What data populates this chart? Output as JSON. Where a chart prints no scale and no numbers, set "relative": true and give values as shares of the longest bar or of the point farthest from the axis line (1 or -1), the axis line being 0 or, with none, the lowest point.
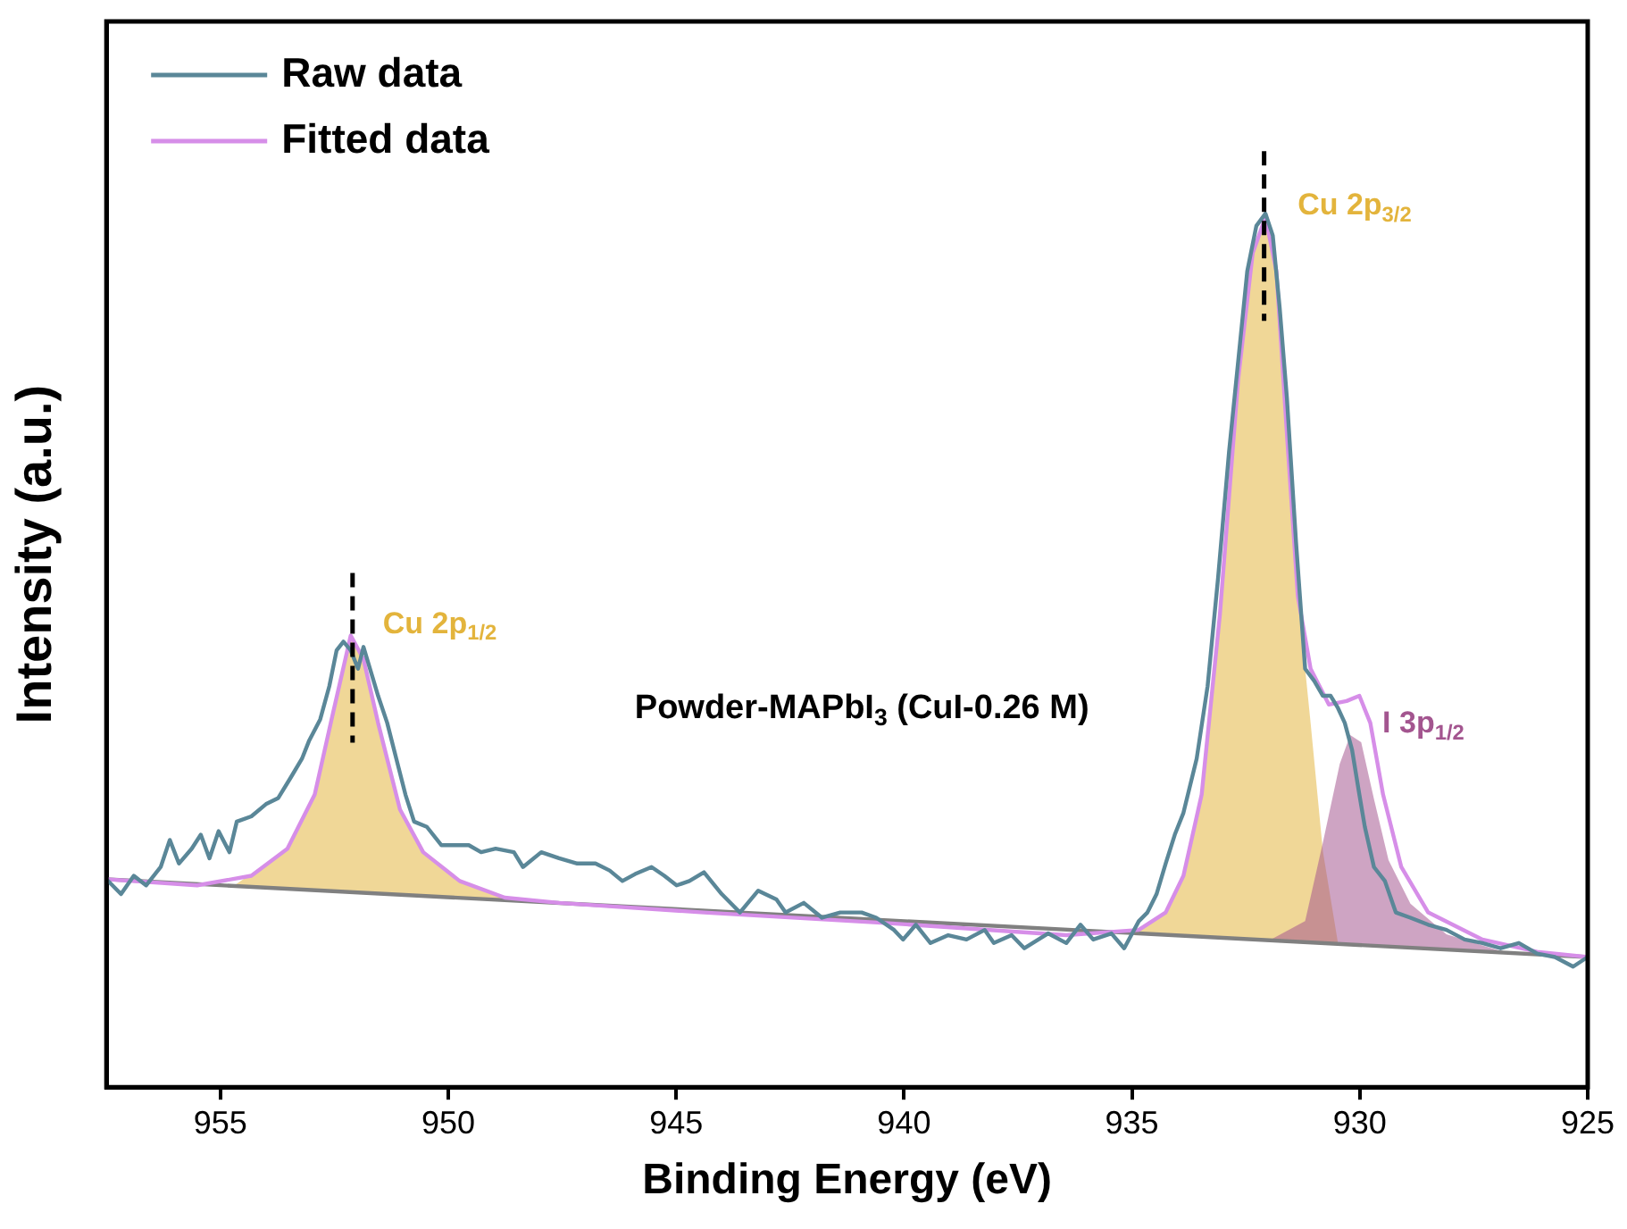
{
  "chart_data": {
    "type": "line",
    "relative": true,
    "xlabel": "Binding Energy (eV)",
    "ylabel": "Intensity (a.u.)",
    "xlim": [
      957.5,
      925
    ],
    "xticks": [
      955,
      950,
      945,
      940,
      935,
      930,
      925
    ],
    "tick_labels": "x",
    "grid": false,
    "legend": "top left",
    "marker": "none",
    "line_style": "solid",
    "annotations": [
      "Powder-MAPbI$_{3}$ (CuI-0.26 M)"
    ],
    "ref_lines": [
      {
        "axis": "x",
        "value": 952.1,
        "color": "#000000",
        "line_style": "dashed"
      },
      {
        "axis": "x",
        "value": 932.1,
        "color": "#000000",
        "line_style": "dashed"
      }
    ],
    "series": [
      {
        "type": "area",
        "name": "Cu 2p$_{1/2}$",
        "color": "#e3b43c",
        "x": [
          954.72,
          953.53,
          952.93,
          952.53,
          952.14,
          951.86,
          951.54,
          951.06,
          950.55,
          949.75,
          948.76,
          947.17
        ],
        "values": [
          0.23,
          0.273,
          0.335,
          0.428,
          0.517,
          0.49,
          0.417,
          0.318,
          0.269,
          0.236,
          0.217,
          0.21
        ]
      },
      {
        "type": "area",
        "name": "Cu 2p$_{3/2}$",
        "color": "#e3b43c",
        "x": [
          935.2,
          934.85,
          934.26,
          933.87,
          933.47,
          933.07,
          932.67,
          932.35,
          932.07,
          931.83,
          931.6,
          931.36,
          931.08,
          930.81,
          930.48
        ],
        "values": [
          0.177,
          0.18,
          0.2,
          0.242,
          0.335,
          0.541,
          0.81,
          0.955,
          0.996,
          0.934,
          0.748,
          0.562,
          0.417,
          0.27,
          0.165
        ]
      },
      {
        "type": "area",
        "name": "I 3p$_{1/2}$",
        "color": "#a3558f",
        "x": [
          931.99,
          931.2,
          930.81,
          930.44,
          930.21,
          929.97,
          929.69,
          929.37,
          928.89,
          928.1,
          926.91,
          926.11
        ],
        "values": [
          0.168,
          0.19,
          0.28,
          0.37,
          0.403,
          0.395,
          0.33,
          0.26,
          0.21,
          0.175,
          0.156,
          0.152
        ]
      },
      {
        "type": "line",
        "color": "#808080",
        "x": [
          957.5,
          925
        ],
        "values": [
          0.238,
          0.149
        ]
      },
      {
        "type": "line",
        "name": "Raw data",
        "color": "#5a8798",
        "x": [
          957.5,
          957.18,
          956.9,
          956.63,
          956.31,
          956.11,
          955.91,
          955.63,
          955.43,
          955.24,
          955.04,
          954.8,
          954.64,
          954.32,
          954.0,
          953.73,
          953.45,
          953.21,
          953.05,
          952.81,
          952.61,
          952.45,
          952.3,
          952.14,
          951.98,
          951.86,
          951.74,
          951.54,
          951.34,
          951.14,
          950.94,
          950.75,
          950.47,
          950.15,
          949.87,
          949.55,
          949.28,
          948.96,
          948.56,
          948.36,
          947.96,
          947.57,
          947.17,
          946.77,
          946.46,
          946.18,
          945.9,
          945.54,
          945.26,
          944.99,
          944.71,
          944.39,
          944.0,
          943.6,
          943.2,
          942.8,
          942.6,
          942.2,
          941.8,
          941.4,
          940.93,
          940.61,
          940.22,
          940.02,
          939.74,
          939.42,
          939.03,
          938.63,
          938.23,
          938.03,
          937.64,
          937.36,
          936.84,
          936.44,
          936.13,
          935.85,
          935.45,
          935.17,
          934.85,
          934.66,
          934.46,
          934.26,
          934.06,
          933.87,
          933.58,
          933.34,
          933.11,
          932.87,
          932.63,
          932.47,
          932.27,
          932.07,
          931.91,
          931.76,
          931.6,
          931.4,
          931.2,
          931.0,
          930.81,
          930.64,
          930.48,
          930.33,
          930.17,
          930.01,
          929.89,
          929.69,
          929.45,
          929.21,
          928.89,
          928.5,
          928.1,
          927.7,
          927.31,
          926.91,
          926.51,
          926.11,
          925.72,
          925.32,
          925.0
        ],
        "values": [
          0.238,
          0.221,
          0.242,
          0.231,
          0.252,
          0.283,
          0.256,
          0.273,
          0.289,
          0.262,
          0.293,
          0.269,
          0.304,
          0.31,
          0.324,
          0.331,
          0.355,
          0.376,
          0.397,
          0.421,
          0.459,
          0.5,
          0.51,
          0.5,
          0.479,
          0.504,
          0.483,
          0.448,
          0.417,
          0.376,
          0.335,
          0.304,
          0.298,
          0.277,
          0.277,
          0.277,
          0.269,
          0.273,
          0.269,
          0.252,
          0.269,
          0.262,
          0.256,
          0.256,
          0.248,
          0.236,
          0.244,
          0.252,
          0.242,
          0.231,
          0.236,
          0.246,
          0.221,
          0.2,
          0.225,
          0.215,
          0.2,
          0.211,
          0.194,
          0.2,
          0.2,
          0.194,
          0.18,
          0.169,
          0.186,
          0.165,
          0.174,
          0.169,
          0.18,
          0.165,
          0.174,
          0.159,
          0.176,
          0.165,
          0.186,
          0.169,
          0.176,
          0.159,
          0.19,
          0.2,
          0.221,
          0.256,
          0.289,
          0.314,
          0.376,
          0.459,
          0.583,
          0.727,
          0.851,
          0.934,
          0.986,
          1,
          0.975,
          0.893,
          0.789,
          0.624,
          0.479,
          0.465,
          0.448,
          0.448,
          0.434,
          0.417,
          0.386,
          0.335,
          0.298,
          0.252,
          0.236,
          0.2,
          0.194,
          0.186,
          0.18,
          0.169,
          0.165,
          0.159,
          0.165,
          0.153,
          0.149,
          0.138,
          0.149
        ]
      },
      {
        "type": "line",
        "name": "Fitted data",
        "color": "#d68ee8",
        "x": [
          957.5,
          955.51,
          954.32,
          953.53,
          952.93,
          952.53,
          952.14,
          951.86,
          951.54,
          951.06,
          950.55,
          949.75,
          948.76,
          947.57,
          944.39,
          940.42,
          936.44,
          934.85,
          934.26,
          933.87,
          933.47,
          933.07,
          932.67,
          932.35,
          932.07,
          931.83,
          931.6,
          931.36,
          931.08,
          930.68,
          930.29,
          930.01,
          929.77,
          929.49,
          929.09,
          928.5,
          927.31,
          926.11,
          925.0
        ],
        "values": [
          0.238,
          0.231,
          0.242,
          0.273,
          0.335,
          0.428,
          0.517,
          0.49,
          0.417,
          0.318,
          0.269,
          0.236,
          0.217,
          0.211,
          0.2,
          0.188,
          0.174,
          0.18,
          0.2,
          0.242,
          0.335,
          0.541,
          0.81,
          0.955,
          0.996,
          0.934,
          0.748,
          0.562,
          0.479,
          0.438,
          0.442,
          0.448,
          0.417,
          0.335,
          0.252,
          0.2,
          0.169,
          0.155,
          0.149
        ]
      }
    ]
  }
}
